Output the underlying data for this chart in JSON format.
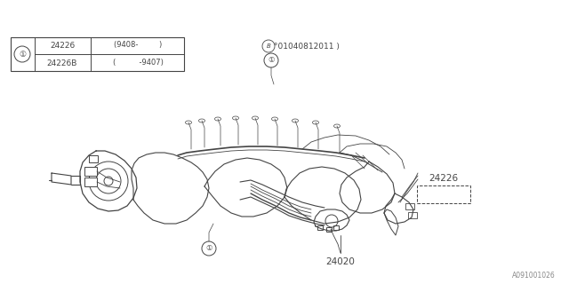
{
  "bg_color": "#ffffff",
  "line_color": "#444444",
  "part_number_24020": "24020",
  "part_number_24226": "24226",
  "callout_label": "1",
  "table_rows": [
    {
      "part": "24226B",
      "note": "(          -9407)"
    },
    {
      "part": "24226",
      "note": "(9408-         )"
    }
  ],
  "bottom_text": "°01040812011 )",
  "ref_code": "A091001026",
  "fig_width": 6.4,
  "fig_height": 3.2,
  "dpi": 100
}
